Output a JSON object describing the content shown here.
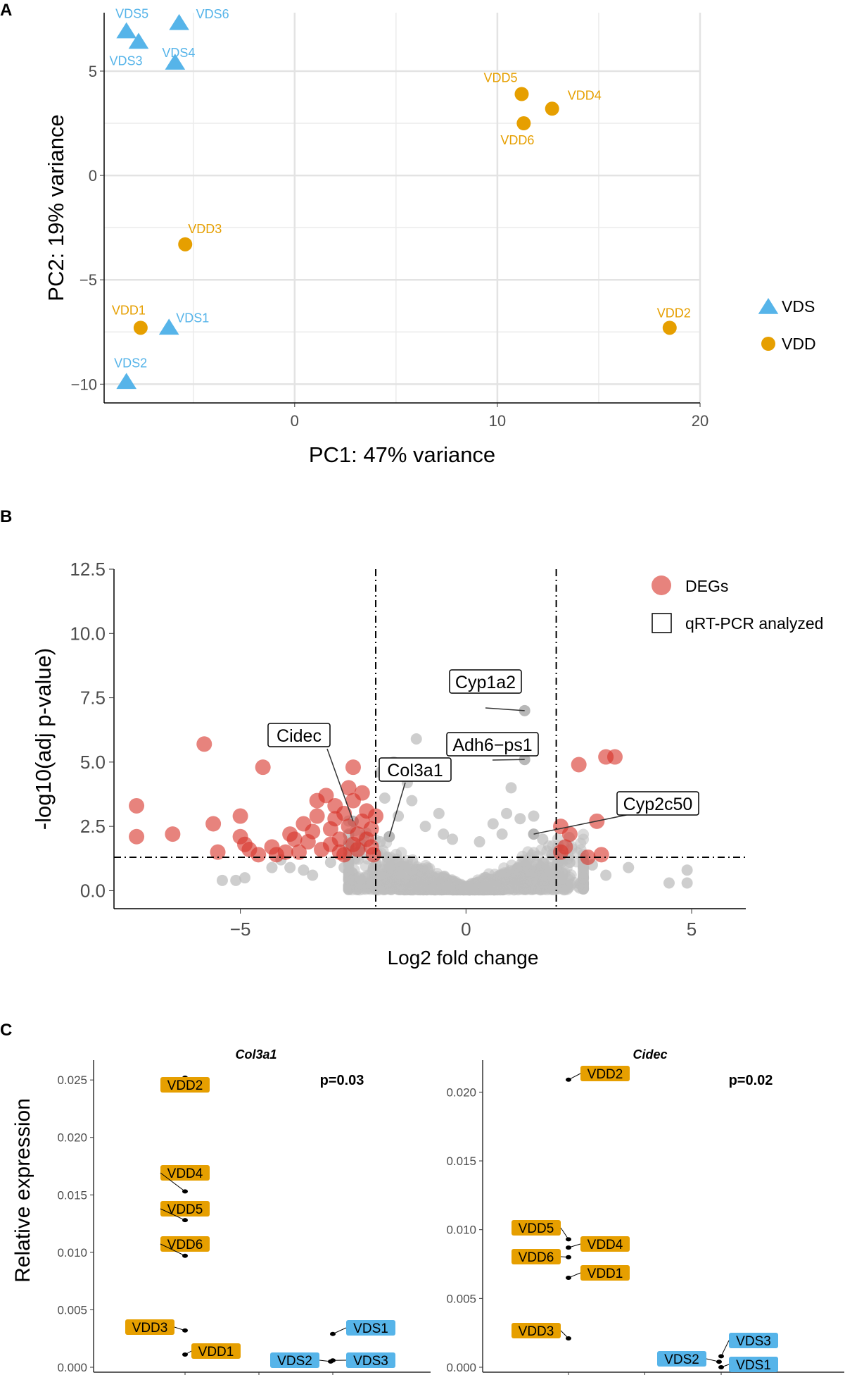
{
  "colors": {
    "vds": "#56B4E9",
    "vdd": "#E69F00",
    "deg": "#D73027",
    "nonsig": "#BEBEBE",
    "grid": "#EBEBEB"
  },
  "chart_data": [
    {
      "panel": "A",
      "type": "scatter",
      "xlabel": "PC1: 47% variance",
      "ylabel": "PC2: 19% variance",
      "xlim": [
        -9.4,
        20
      ],
      "ylim": [
        -10.9,
        7.8
      ],
      "xticks": [
        "0",
        "10",
        "20"
      ],
      "yticks": [
        "5",
        "0",
        "−5",
        "−10"
      ],
      "legend": [
        "VDS",
        "VDD"
      ],
      "series": [
        {
          "name": "VDS",
          "shape": "triangle",
          "points": [
            {
              "label": "VDS5",
              "x": -8.3,
              "y": 6.9
            },
            {
              "label": "VDS6",
              "x": -5.7,
              "y": 7.3
            },
            {
              "label": "VDS3",
              "x": -7.7,
              "y": 6.4
            },
            {
              "label": "VDS4",
              "x": -5.9,
              "y": 5.4
            },
            {
              "label": "VDS1",
              "x": -6.2,
              "y": -7.3
            },
            {
              "label": "VDS2",
              "x": -8.3,
              "y": -9.9
            }
          ]
        },
        {
          "name": "VDD",
          "shape": "circle",
          "points": [
            {
              "label": "VDD5",
              "x": 11.2,
              "y": 3.9
            },
            {
              "label": "VDD4",
              "x": 12.7,
              "y": 3.2
            },
            {
              "label": "VDD6",
              "x": 11.3,
              "y": 2.5
            },
            {
              "label": "VDD3",
              "x": -5.4,
              "y": -3.3
            },
            {
              "label": "VDD1",
              "x": -7.6,
              "y": -7.3
            },
            {
              "label": "VDD2",
              "x": 18.5,
              "y": -7.3
            }
          ]
        }
      ]
    },
    {
      "panel": "B",
      "type": "scatter",
      "xlabel": "Log2 fold change",
      "ylabel": "-log10(adj p-value)",
      "xlim": [
        -7.8,
        6.2
      ],
      "ylim": [
        -0.7,
        12.5
      ],
      "xticks": [
        "−5",
        "0",
        "5"
      ],
      "yticks": [
        "12.5",
        "10.0",
        "7.5",
        "5.0",
        "2.5",
        "0.0"
      ],
      "fc_cutoffs": [
        -2,
        2
      ],
      "p_cutoff": 1.3,
      "legend": [
        "DEGs",
        "qRT-PCR analyzed"
      ],
      "degs": [
        [
          -7.3,
          3.3
        ],
        [
          -7.3,
          2.1
        ],
        [
          -6.5,
          2.2
        ],
        [
          -5.8,
          5.7
        ],
        [
          -5.6,
          2.6
        ],
        [
          -5.5,
          1.5
        ],
        [
          -5.0,
          2.9
        ],
        [
          -5.0,
          2.1
        ],
        [
          -4.9,
          1.8
        ],
        [
          -4.8,
          1.6
        ],
        [
          -4.5,
          4.8
        ],
        [
          -4.3,
          1.7
        ],
        [
          -4.2,
          1.4
        ],
        [
          -4.0,
          1.5
        ],
        [
          -3.8,
          2.0
        ],
        [
          -3.6,
          2.6
        ],
        [
          -3.5,
          1.9
        ],
        [
          -3.4,
          2.3
        ],
        [
          -3.3,
          2.9
        ],
        [
          -3.2,
          1.6
        ],
        [
          -3.1,
          3.7
        ],
        [
          -3.0,
          2.4
        ],
        [
          -3.0,
          1.8
        ],
        [
          -2.9,
          2.8
        ],
        [
          -2.8,
          2.0
        ],
        [
          -2.8,
          1.5
        ],
        [
          -2.7,
          3.0
        ],
        [
          -2.6,
          2.5
        ],
        [
          -2.6,
          4.0
        ],
        [
          -2.5,
          1.8
        ],
        [
          -2.5,
          3.5
        ],
        [
          -2.5,
          4.8
        ],
        [
          -2.4,
          2.2
        ],
        [
          -2.4,
          1.6
        ],
        [
          -2.3,
          3.8
        ],
        [
          -2.3,
          2.7
        ],
        [
          -2.2,
          2.0
        ],
        [
          -2.2,
          3.1
        ],
        [
          -2.1,
          1.7
        ],
        [
          -2.1,
          2.4
        ],
        [
          -2.0,
          2.9
        ],
        [
          -2.05,
          1.4
        ],
        [
          -3.7,
          1.5
        ],
        [
          -4.6,
          1.4
        ],
        [
          -3.9,
          2.2
        ],
        [
          -2.7,
          1.4
        ],
        [
          -2.9,
          3.3
        ],
        [
          -3.3,
          3.5
        ],
        [
          2.1,
          2.5
        ],
        [
          2.2,
          1.7
        ],
        [
          2.5,
          4.9
        ],
        [
          2.7,
          1.3
        ],
        [
          2.9,
          2.7
        ],
        [
          3.0,
          1.4
        ],
        [
          3.1,
          5.2
        ],
        [
          3.3,
          5.2
        ],
        [
          2.3,
          2.2
        ],
        [
          2.1,
          1.5
        ]
      ],
      "highlighted": [
        {
          "gene": "Cyp1a2",
          "x": 1.3,
          "y": 7.0
        },
        {
          "gene": "Cidec",
          "x": -2.5,
          "y": 2.7
        },
        {
          "gene": "Adh6−ps1",
          "x": 1.3,
          "y": 5.1
        },
        {
          "gene": "Col3a1",
          "x": -1.7,
          "y": 2.1
        },
        {
          "gene": "Cyp2c50",
          "x": 1.5,
          "y": 2.2
        }
      ]
    },
    {
      "panel": "C",
      "type": "scatter",
      "ylabel": "Relative expression",
      "subplots": [
        {
          "title": "Col3a1",
          "pvalue": "p=0.03",
          "ylim": [
            0,
            0.0255
          ],
          "yticks": [
            "0.025",
            "0.020",
            "0.015",
            "0.010",
            "0.005",
            "0.000"
          ],
          "points": [
            {
              "label": "VDD2",
              "group": "VDD",
              "col": 1,
              "y": 0.0252
            },
            {
              "label": "VDD4",
              "group": "VDD",
              "col": 1,
              "y": 0.0153
            },
            {
              "label": "VDD5",
              "group": "VDD",
              "col": 1,
              "y": 0.0128
            },
            {
              "label": "VDD6",
              "group": "VDD",
              "col": 1,
              "y": 0.0097
            },
            {
              "label": "VDD3",
              "group": "VDD",
              "col": 1,
              "y": 0.0032
            },
            {
              "label": "VDD1",
              "group": "VDD",
              "col": 1,
              "y": 0.0011
            },
            {
              "label": "VDS1",
              "group": "VDS",
              "col": 3,
              "y": 0.0029
            },
            {
              "label": "VDS2",
              "group": "VDS",
              "col": 3,
              "y": 0.0005
            },
            {
              "label": "VDS3",
              "group": "VDS",
              "col": 3,
              "y": 0.0006
            }
          ]
        },
        {
          "title": "Cidec",
          "pvalue": "p=0.02",
          "ylim": [
            0,
            0.0213
          ],
          "yticks": [
            "0.020",
            "0.015",
            "0.010",
            "0.005",
            "0.000"
          ],
          "points": [
            {
              "label": "VDD2",
              "group": "VDD",
              "col": 1,
              "y": 0.0209
            },
            {
              "label": "VDD5",
              "group": "VDD",
              "col": 1,
              "y": 0.0093
            },
            {
              "label": "VDD4",
              "group": "VDD",
              "col": 1,
              "y": 0.0087
            },
            {
              "label": "VDD6",
              "group": "VDD",
              "col": 1,
              "y": 0.008
            },
            {
              "label": "VDD1",
              "group": "VDD",
              "col": 1,
              "y": 0.0065
            },
            {
              "label": "VDD3",
              "group": "VDD",
              "col": 1,
              "y": 0.0021
            },
            {
              "label": "VDS3",
              "group": "VDS",
              "col": 3,
              "y": 0.0008
            },
            {
              "label": "VDS2",
              "group": "VDS",
              "col": 3,
              "y": 0.0004
            },
            {
              "label": "VDS1",
              "group": "VDS",
              "col": 3,
              "y": 0.0
            }
          ]
        }
      ]
    }
  ]
}
